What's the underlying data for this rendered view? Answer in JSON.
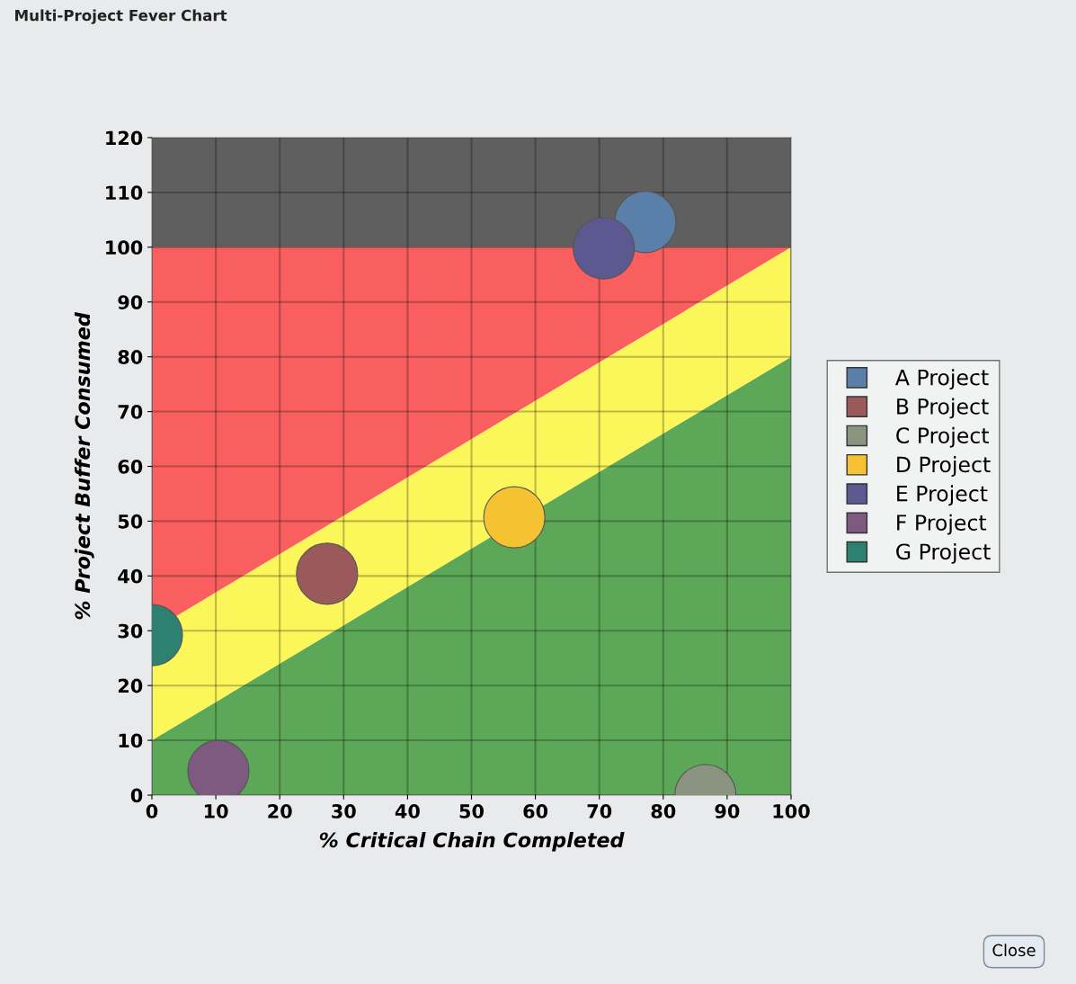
{
  "chart_data": {
    "type": "scatter",
    "title": "Multi-Project Fever Chart",
    "xlabel": "% Critical Chain Completed",
    "ylabel": "% Project Buffer Consumed",
    "xlim": [
      0,
      100
    ],
    "xticks": [
      0,
      10,
      20,
      30,
      40,
      50,
      60,
      70,
      80,
      90,
      100
    ],
    "ylim": [
      0,
      120
    ],
    "yticks": [
      0,
      10,
      20,
      30,
      40,
      50,
      60,
      70,
      80,
      90,
      100,
      110,
      120
    ],
    "grid": true,
    "legend": "right",
    "stacked": true,
    "bands": [
      {
        "axis": "y",
        "from": 100,
        "to": 120,
        "color": "#5f5f5f"
      }
    ],
    "series": [
      {
        "type": "area",
        "color": "#5da858",
        "x": [
          0,
          100
        ],
        "values": [
          10,
          80
        ]
      },
      {
        "type": "area",
        "color": "#fbf75a",
        "x": [
          0,
          100
        ],
        "values": [
          20,
          20
        ]
      },
      {
        "type": "area",
        "color": "#f95f5f",
        "x": [
          0,
          100
        ],
        "values": [
          70,
          0
        ]
      },
      {
        "name": "A Project",
        "color": "#5a7fa8",
        "marker": "circle",
        "x": [
          77.2
        ],
        "values": [
          104.6
        ]
      },
      {
        "name": "B Project",
        "color": "#9a5a5c",
        "marker": "circle",
        "x": [
          27.4
        ],
        "values": [
          40.4
        ]
      },
      {
        "name": "C Project",
        "color": "#8a9480",
        "marker": "circle",
        "x": [
          86.6
        ],
        "values": [
          0
        ]
      },
      {
        "name": "D Project",
        "color": "#f5c232",
        "marker": "circle",
        "x": [
          56.7
        ],
        "values": [
          50.7
        ]
      },
      {
        "name": "E Project",
        "color": "#5c5890",
        "marker": "circle",
        "x": [
          70.7
        ],
        "values": [
          99.8
        ]
      },
      {
        "name": "F Project",
        "color": "#7e5a80",
        "marker": "circle",
        "x": [
          10.4
        ],
        "values": [
          4.4
        ]
      },
      {
        "name": "G Project",
        "color": "#2e8070",
        "marker": "circle",
        "x": [
          0
        ],
        "values": [
          29.2
        ]
      }
    ],
    "annotations": [
      "Close"
    ]
  }
}
